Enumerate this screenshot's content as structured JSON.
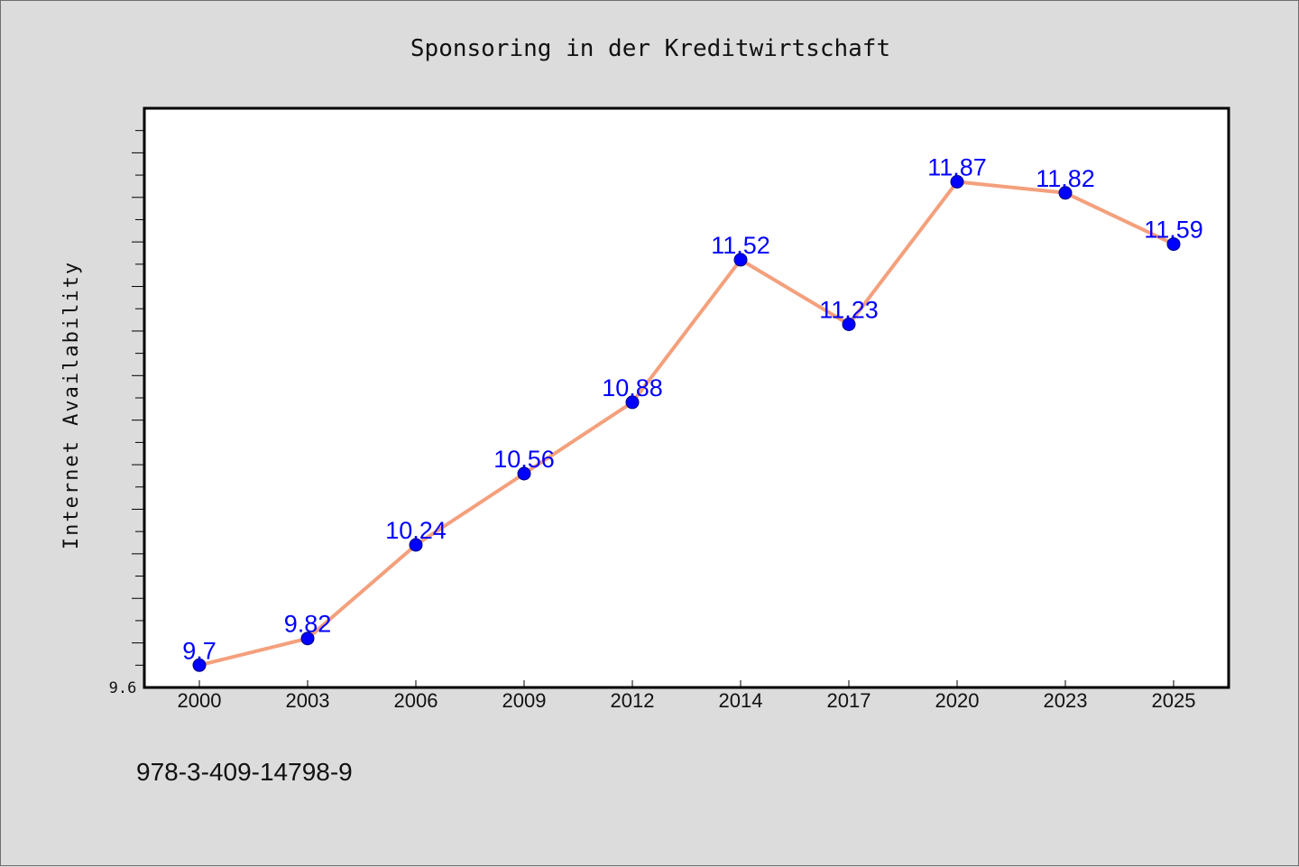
{
  "chart_data": {
    "type": "line",
    "title": "Sponsoring in der Kreditwirtschaft",
    "xlabel": "",
    "ylabel": "Internet Availability",
    "categories": [
      "2000",
      "2003",
      "2006",
      "2009",
      "2012",
      "2014",
      "2017",
      "2020",
      "2023",
      "2025"
    ],
    "series": [
      {
        "values": [
          9.7,
          9.82,
          10.24,
          10.56,
          10.88,
          11.52,
          11.23,
          11.87,
          11.82,
          11.59
        ],
        "line_color": "#f4a07c",
        "marker_color": "#0000ff",
        "label_color": "#0000ff"
      }
    ],
    "data_labels": [
      "9.7",
      "9.82",
      "10.24",
      "10.56",
      "10.88",
      "11.52",
      "11.23",
      "11.87",
      "11.82",
      "11.59"
    ],
    "y_tick_labels": [
      "9.6"
    ],
    "ylim": [
      9.6,
      12.2
    ],
    "y_minor_tick_step": 0.1,
    "grid": false,
    "legend": "none"
  },
  "footer": {
    "isbn": "978-3-409-14798-9"
  },
  "colors": {
    "background": "#dcdcdc",
    "plot_background": "#ffffff",
    "axis": "#000000"
  }
}
